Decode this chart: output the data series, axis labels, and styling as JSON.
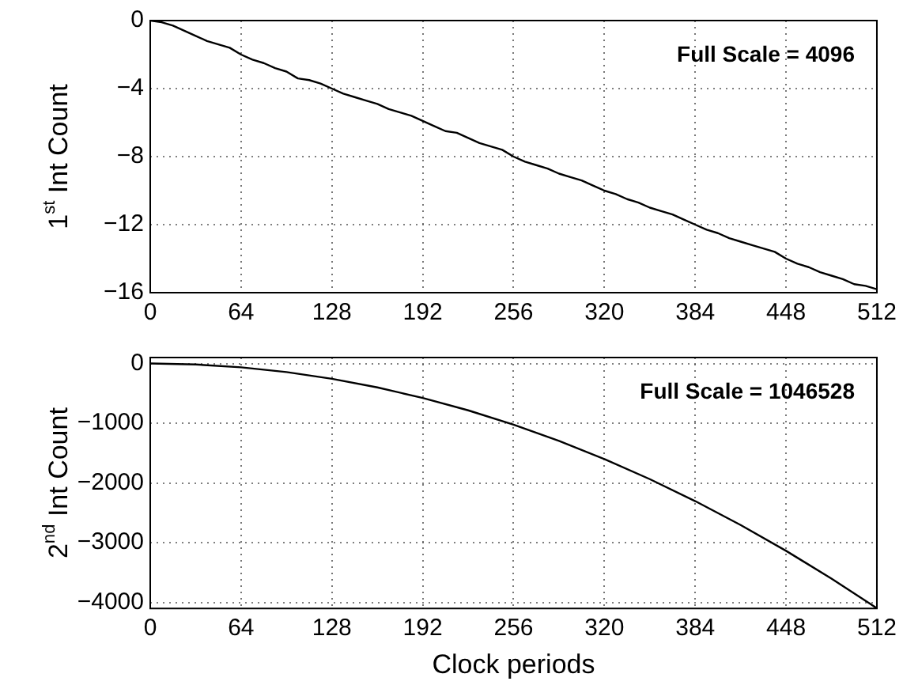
{
  "chart_data": [
    {
      "type": "line",
      "ylabel": "1$^{st}$ Int Count",
      "annotations": [
        "Full Scale = 4096"
      ],
      "x": [
        0,
        8,
        16,
        24,
        32,
        40,
        48,
        56,
        64,
        72,
        80,
        88,
        96,
        104,
        112,
        120,
        128,
        136,
        144,
        152,
        160,
        168,
        176,
        184,
        192,
        200,
        208,
        216,
        224,
        232,
        240,
        248,
        256,
        264,
        272,
        280,
        288,
        296,
        304,
        312,
        320,
        328,
        336,
        344,
        352,
        360,
        368,
        376,
        384,
        392,
        400,
        408,
        416,
        424,
        432,
        440,
        448,
        456,
        464,
        472,
        480,
        488,
        496,
        504,
        512
      ],
      "series": [
        {
          "color": "#000000",
          "values": [
            0,
            -0.1,
            -0.3,
            -0.6,
            -0.9,
            -1.2,
            -1.4,
            -1.6,
            -2.0,
            -2.3,
            -2.5,
            -2.8,
            -3.0,
            -3.4,
            -3.5,
            -3.7,
            -4.0,
            -4.3,
            -4.5,
            -4.7,
            -4.9,
            -5.2,
            -5.4,
            -5.6,
            -5.9,
            -6.2,
            -6.5,
            -6.6,
            -6.9,
            -7.2,
            -7.4,
            -7.6,
            -8.0,
            -8.3,
            -8.5,
            -8.7,
            -9.0,
            -9.2,
            -9.4,
            -9.7,
            -10.0,
            -10.2,
            -10.5,
            -10.7,
            -11.0,
            -11.2,
            -11.4,
            -11.7,
            -12.0,
            -12.3,
            -12.5,
            -12.8,
            -13.0,
            -13.2,
            -13.4,
            -13.6,
            -14.0,
            -14.3,
            -14.5,
            -14.8,
            -15.0,
            -15.2,
            -15.5,
            -15.6,
            -15.8
          ]
        }
      ],
      "xlim": [
        0,
        512
      ],
      "xticks": [
        0,
        64,
        128,
        192,
        256,
        320,
        384,
        448,
        512
      ],
      "ylim": [
        -16,
        0
      ],
      "yticks": [
        0,
        -4,
        -8,
        -12,
        -16
      ],
      "grid": true,
      "legend": false,
      "marker": "none",
      "line_style": "solid"
    },
    {
      "type": "line",
      "xlabel": "Clock periods",
      "ylabel": "2$^{nd}$ Int Count",
      "annotations": [
        "Full Scale = 1046528"
      ],
      "x": [
        0,
        32,
        64,
        96,
        128,
        160,
        192,
        224,
        256,
        288,
        320,
        352,
        384,
        416,
        448,
        480,
        512
      ],
      "series": [
        {
          "color": "#000000",
          "values": [
            0,
            -16,
            -64,
            -144,
            -256,
            -400,
            -576,
            -784,
            -1024,
            -1296,
            -1600,
            -1936,
            -2304,
            -2704,
            -3136,
            -3600,
            -4096
          ]
        }
      ],
      "xlim": [
        0,
        512
      ],
      "xticks": [
        0,
        64,
        128,
        192,
        256,
        320,
        384,
        448,
        512
      ],
      "ylim": [
        -4100,
        100
      ],
      "yticks": [
        0,
        -1000,
        -2000,
        -3000,
        -4000
      ],
      "grid": true,
      "legend": false,
      "marker": "none",
      "line_style": "solid"
    }
  ]
}
